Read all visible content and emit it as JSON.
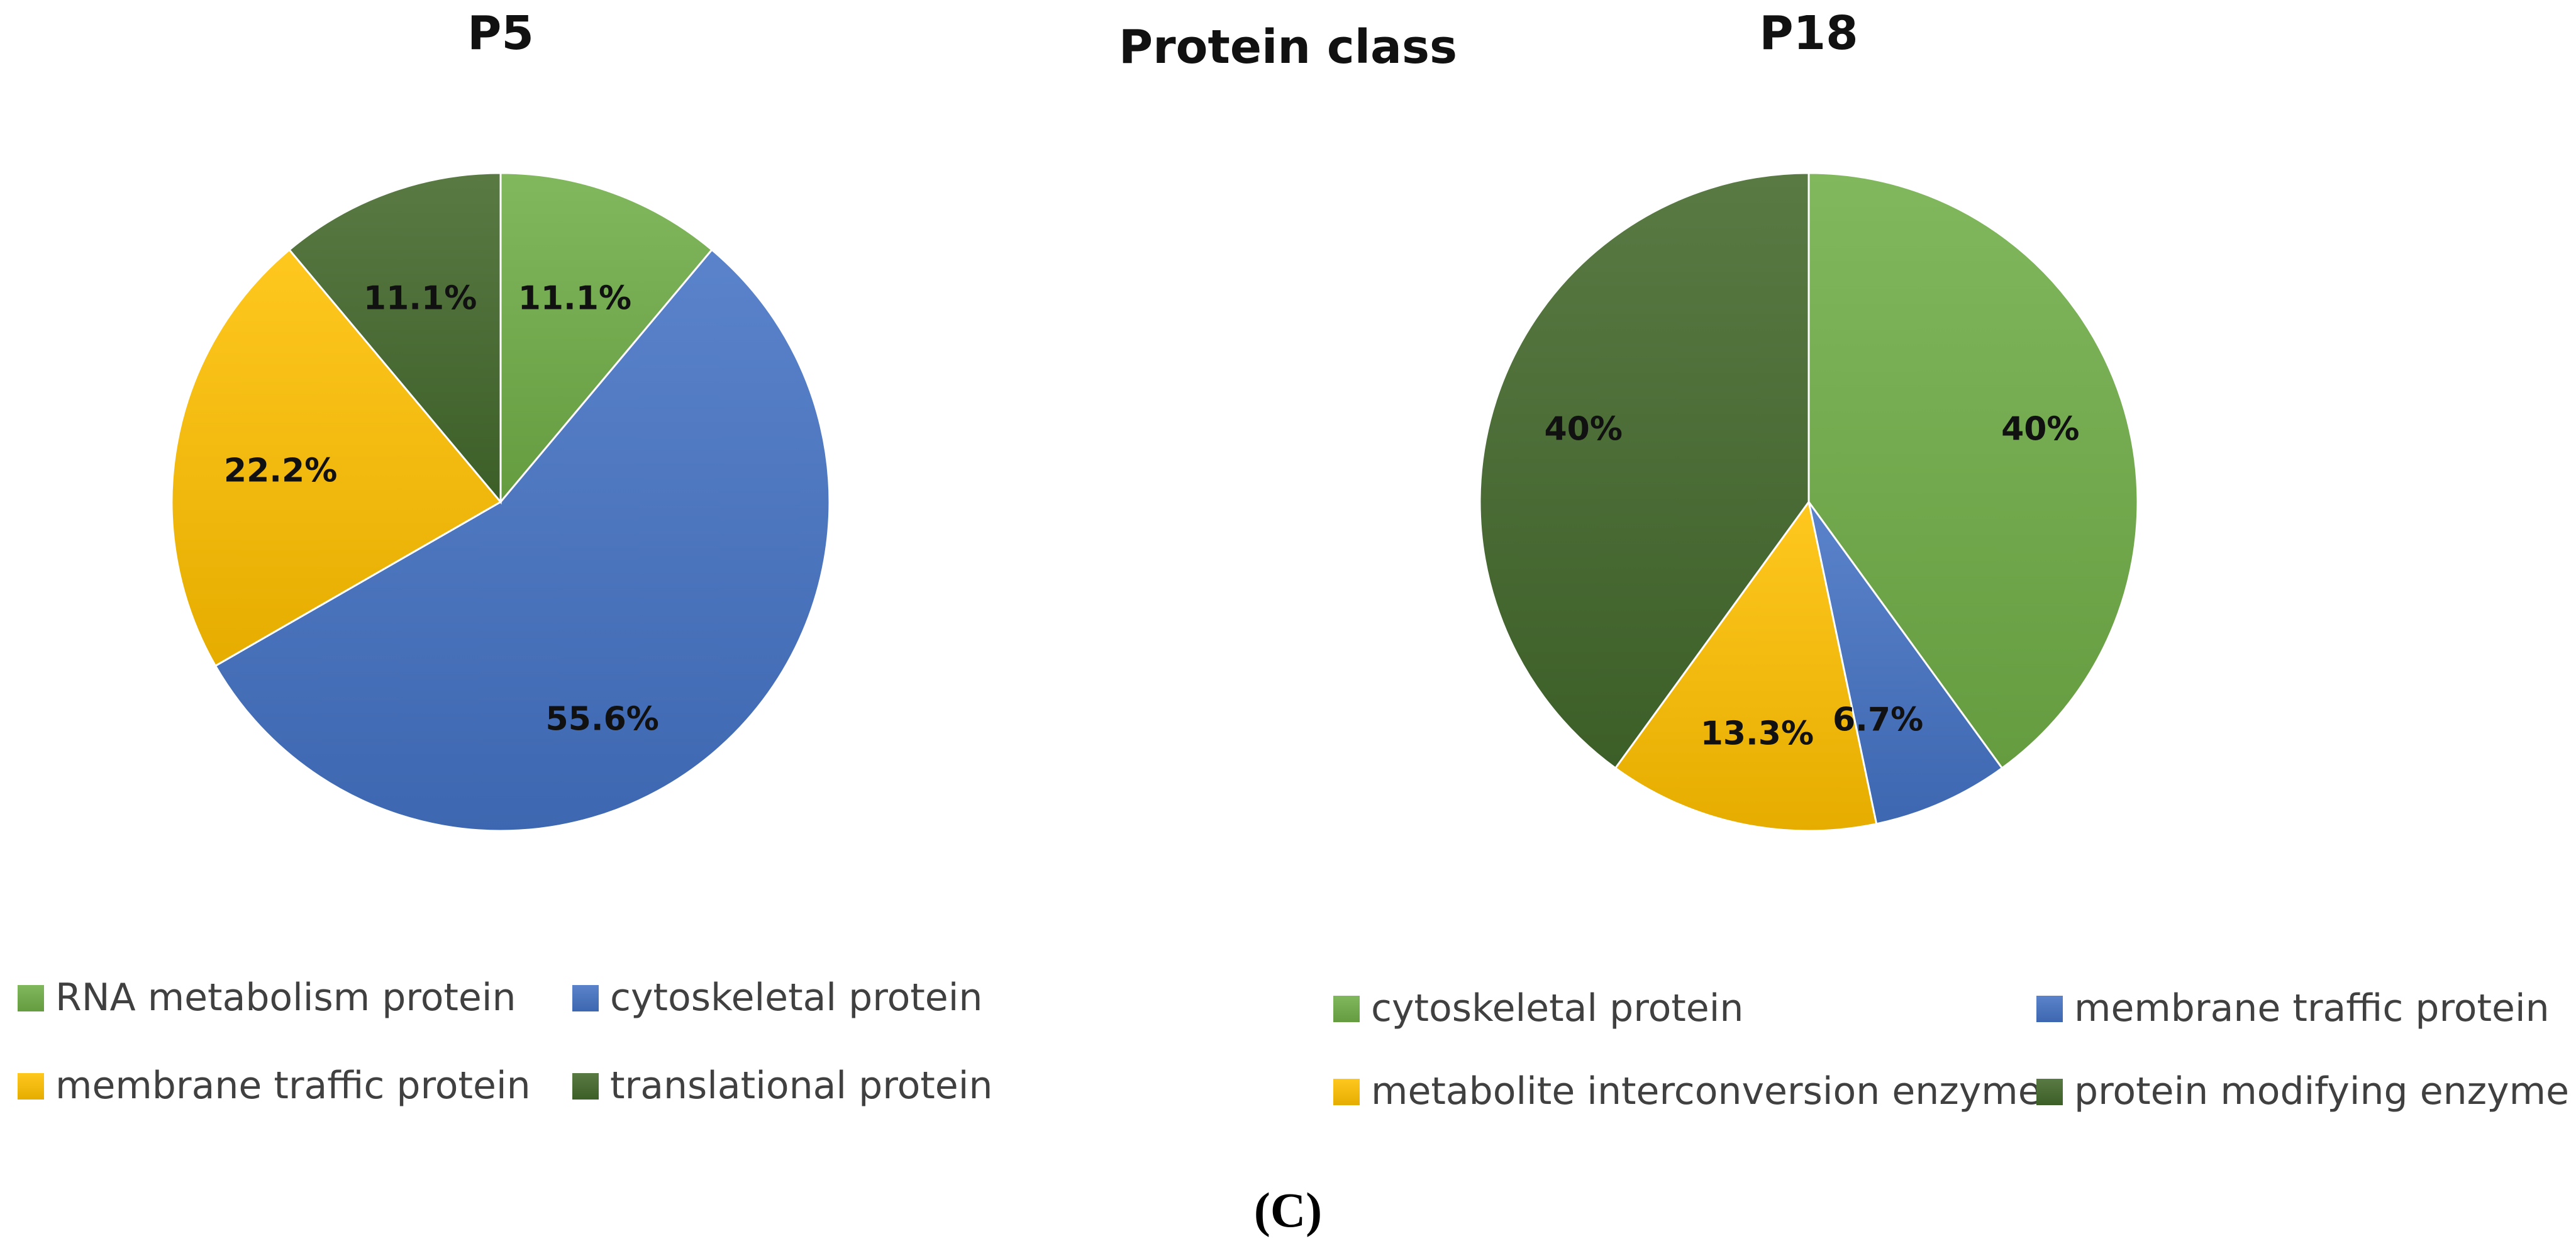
{
  "main_title": "Protein class",
  "panel_label": "(C)",
  "chart_data": [
    {
      "type": "pie",
      "title": "P5",
      "legend_position": "bottom",
      "slices": [
        {
          "label": "RNA metabolism protein",
          "value": 11.1,
          "display": "11.1%",
          "color": "#70ad47"
        },
        {
          "label": "cytoskeletal protein",
          "value": 55.6,
          "display": "55.6%",
          "color": "#4472c4"
        },
        {
          "label": "membrane traffic protein",
          "value": 22.2,
          "display": "22.2%",
          "color": "#ffc000"
        },
        {
          "label": "translational protein",
          "value": 11.1,
          "display": "11.1%",
          "color": "#43682b"
        }
      ]
    },
    {
      "type": "pie",
      "title": "P18",
      "legend_position": "bottom",
      "slices": [
        {
          "label": "cytoskeletal protein",
          "value": 40,
          "display": "40%",
          "color": "#70ad47"
        },
        {
          "label": "membrane traffic protein",
          "value": 6.7,
          "display": "6.7%",
          "color": "#4472c4"
        },
        {
          "label": "metabolite interconversion enzyme",
          "value": 13.3,
          "display": "13.3%",
          "color": "#ffc000"
        },
        {
          "label": "protein modifying enzyme",
          "value": 40,
          "display": "40%",
          "color": "#43682b"
        }
      ]
    }
  ]
}
